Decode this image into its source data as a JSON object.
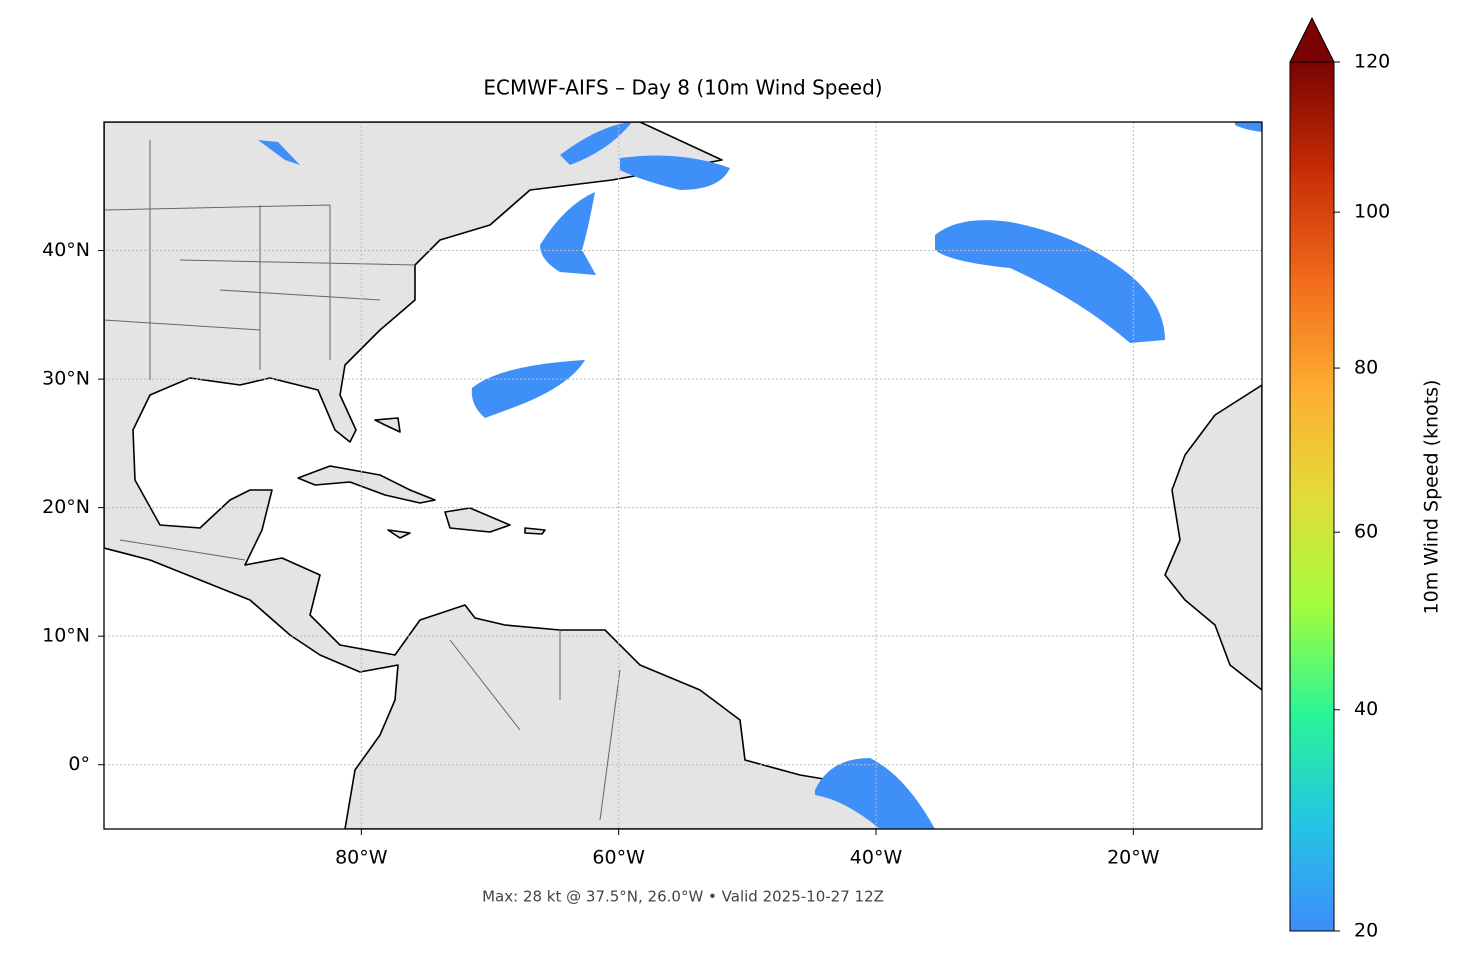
{
  "chart_data": {
    "type": "map",
    "title": "ECMWF-AIFS – Day 8 (10m Wind Speed)",
    "annotation": "Max: 28 kt @ 37.5°N, 26.0°W • Valid 2025-10-27 12Z",
    "xlim": [
      -100,
      -10
    ],
    "ylim": [
      -5,
      50
    ],
    "xticks": [
      {
        "value": -80,
        "label": "80°W"
      },
      {
        "value": -60,
        "label": "60°W"
      },
      {
        "value": -40,
        "label": "40°W"
      },
      {
        "value": -20,
        "label": "20°W"
      }
    ],
    "yticks": [
      {
        "value": 0,
        "label": "0°"
      },
      {
        "value": 10,
        "label": "10°N"
      },
      {
        "value": 20,
        "label": "20°N"
      },
      {
        "value": 30,
        "label": "30°N"
      },
      {
        "value": 40,
        "label": "40°N"
      }
    ],
    "grid": true,
    "colorbar": {
      "label": "10m Wind Speed (knots)",
      "lim": [
        20,
        120
      ],
      "ticks": [
        20,
        40,
        60,
        80,
        100,
        120
      ],
      "colors": [
        "#3f8cfb",
        "#23c6e3",
        "#2af597",
        "#a3fd3d",
        "#e2dc38",
        "#fdad32",
        "#f26a1a",
        "#c62d05",
        "#7a0403"
      ],
      "extend": "max"
    }
  }
}
